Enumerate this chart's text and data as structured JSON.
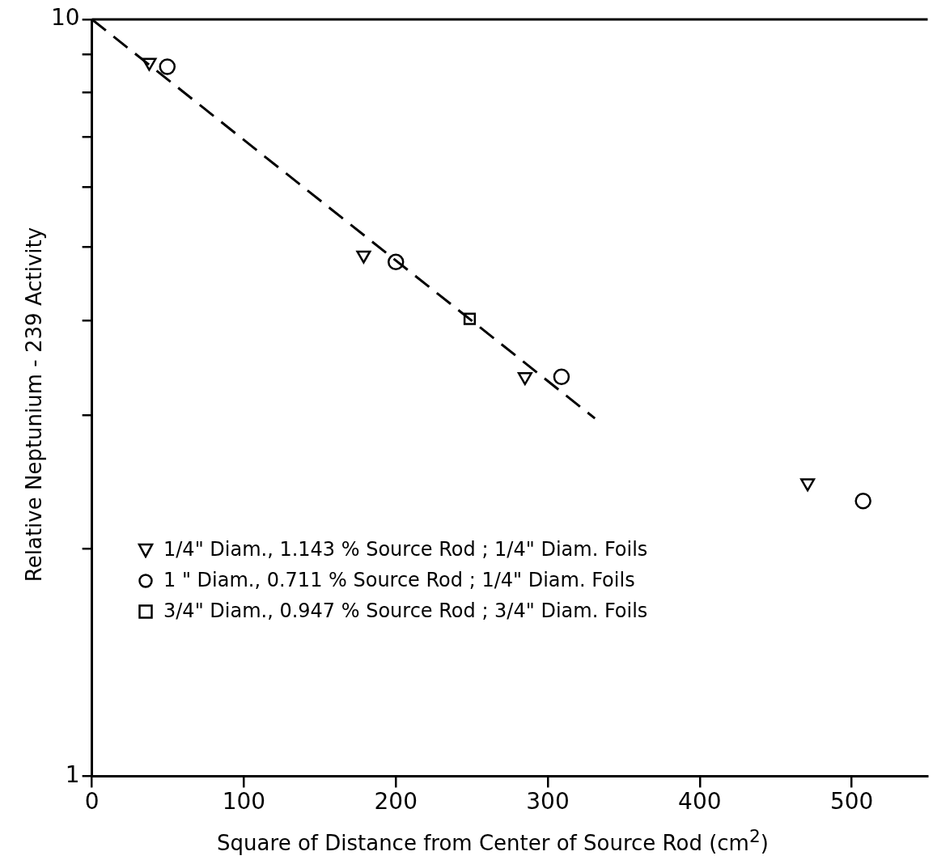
{
  "chart_data": {
    "type": "scatter",
    "xlabel": "Square of Distance from Center of Source Rod (cm$^{2}$)",
    "ylabel": "Relative Neptunium - 239 Activity",
    "xlim": [
      0,
      550
    ],
    "xticks": [
      0,
      100,
      200,
      300,
      400,
      500
    ],
    "ylim": [
      1,
      10
    ],
    "yticks": [
      1,
      {
        "value": 2,
        "label": null
      },
      {
        "value": 3,
        "label": null
      },
      {
        "value": 4,
        "label": null
      },
      {
        "value": 5,
        "label": null
      },
      {
        "value": 6,
        "label": null
      },
      {
        "value": 7,
        "label": null
      },
      {
        "value": 8,
        "label": null
      },
      {
        "value": 9,
        "label": null
      },
      10
    ],
    "log": "y",
    "grid": false,
    "legend": "bottom left",
    "series": [
      {
        "name": "1/4\" Diam., 1.143 % Source Rod ; 1/4\" Diam. Foils",
        "color": "#000000",
        "marker": "triangle",
        "x": [
          37.7,
          178.8,
          285,
          471
        ],
        "values": [
          8.77,
          4.88,
          3.37,
          2.44
        ]
      },
      {
        "name": "1 \" Diam., 0.711 % Source Rod ; 1/4\" Diam. Foils",
        "color": "#000000",
        "marker": "circle",
        "x": [
          49.6,
          200,
          309,
          507.5
        ],
        "values": [
          8.66,
          4.78,
          3.37,
          2.31
        ]
      },
      {
        "name": "3/4\" Diam., 0.947 % Source Rod ; 3/4\" Diam. Foils",
        "color": "#000000",
        "marker": "square",
        "x": [
          248.6
        ],
        "values": [
          4.02
        ]
      },
      {
        "type": "line",
        "color": "#000000",
        "marker": "none",
        "line_style": "dashed",
        "x": [
          0,
          331
        ],
        "values": [
          10,
          2.97
        ]
      }
    ]
  }
}
